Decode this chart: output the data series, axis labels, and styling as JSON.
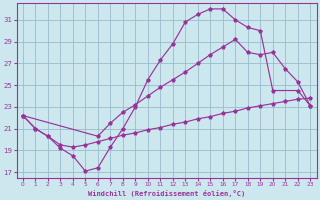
{
  "xlabel": "Windchill (Refroidissement éolien,°C)",
  "xlim": [
    -0.5,
    23.5
  ],
  "ylim": [
    16.5,
    32.5
  ],
  "yticks": [
    17,
    19,
    21,
    23,
    25,
    27,
    29,
    31
  ],
  "xticks": [
    0,
    1,
    2,
    3,
    4,
    5,
    6,
    7,
    8,
    9,
    10,
    11,
    12,
    13,
    14,
    15,
    16,
    17,
    18,
    19,
    20,
    21,
    22,
    23
  ],
  "background_color": "#cce8ee",
  "grid_color": "#99bbcc",
  "line_color": "#993399",
  "line1_x": [
    0,
    1,
    2,
    3,
    4,
    5,
    6,
    7,
    8,
    9,
    10,
    11,
    12,
    13,
    14,
    15,
    16,
    17,
    18,
    19,
    20,
    22,
    23
  ],
  "line1_y": [
    22.2,
    21.0,
    20.3,
    19.2,
    18.5,
    17.1,
    17.4,
    19.3,
    21.0,
    23.0,
    25.5,
    27.3,
    28.8,
    30.8,
    31.5,
    32.0,
    32.0,
    31.0,
    30.3,
    30.0,
    24.5,
    24.5,
    23.1
  ],
  "line2_x": [
    0,
    6,
    7,
    8,
    9,
    10,
    11,
    12,
    13,
    14,
    15,
    16,
    17,
    18,
    19,
    20,
    21,
    22,
    23
  ],
  "line2_y": [
    22.2,
    20.3,
    21.5,
    22.5,
    23.2,
    24.0,
    24.8,
    25.5,
    26.2,
    27.0,
    27.8,
    28.5,
    29.2,
    28.0,
    27.8,
    28.0,
    26.5,
    25.3,
    23.1
  ],
  "line3_x": [
    0,
    1,
    2,
    3,
    4,
    5,
    6,
    7,
    8,
    9,
    10,
    11,
    12,
    13,
    14,
    15,
    16,
    17,
    18,
    19,
    20,
    21,
    22,
    23
  ],
  "line3_y": [
    22.2,
    21.0,
    20.3,
    19.5,
    19.3,
    19.5,
    19.8,
    20.1,
    20.4,
    20.6,
    20.9,
    21.1,
    21.4,
    21.6,
    21.9,
    22.1,
    22.4,
    22.6,
    22.9,
    23.1,
    23.3,
    23.5,
    23.7,
    23.8
  ]
}
